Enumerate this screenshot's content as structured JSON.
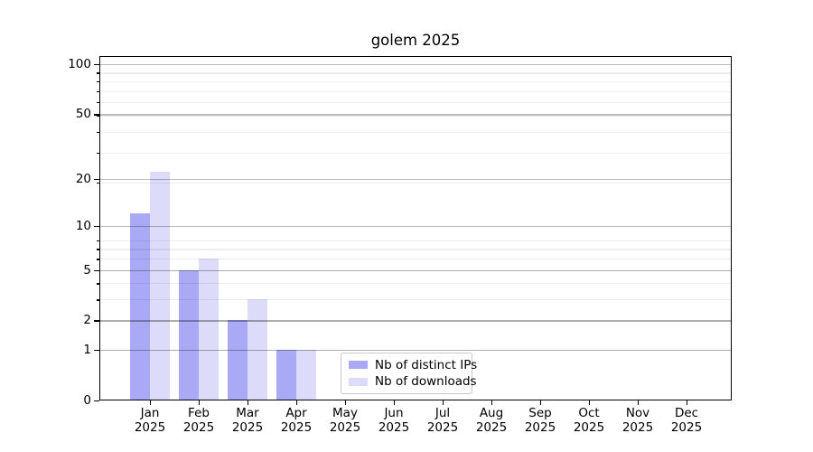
{
  "title": "golem 2025",
  "chart_data": {
    "type": "bar",
    "title": "golem 2025",
    "categories": [
      "Jan 2025",
      "Feb 2025",
      "Mar 2025",
      "Apr 2025",
      "May 2025",
      "Jun 2025",
      "Jul 2025",
      "Aug 2025",
      "Sep 2025",
      "Oct 2025",
      "Nov 2025",
      "Dec 2025"
    ],
    "series": [
      {
        "name": "Nb of distinct IPs",
        "color": "#a9a9f6",
        "values": [
          12,
          5,
          2,
          1,
          0,
          0,
          0,
          0,
          0,
          0,
          0,
          0
        ]
      },
      {
        "name": "Nb of downloads",
        "color": "#dcdcfa",
        "values": [
          22,
          6,
          3,
          1,
          0,
          0,
          0,
          0,
          0,
          0,
          0,
          0
        ]
      }
    ],
    "yscale": "log1p",
    "y_ticks": [
      100,
      50,
      20,
      10,
      5,
      2,
      1,
      0
    ],
    "ylim": [
      0,
      115
    ],
    "xlabel": "",
    "ylabel": "",
    "grid": true,
    "legend_position": "lower center"
  },
  "colors": {
    "background": "#ffffff",
    "axis": "#000000",
    "major_grid": "#b0b0b0",
    "minor_grid": "#ededed"
  }
}
